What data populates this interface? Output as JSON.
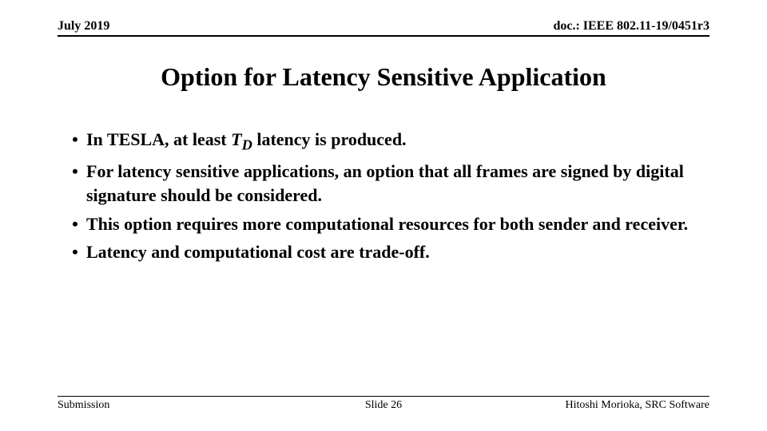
{
  "header": {
    "left": "July 2019",
    "right": "doc.: IEEE 802.11-19/0451r3"
  },
  "title": "Option for Latency Sensitive Application",
  "bullets": [
    {
      "pre": "In TESLA, at least ",
      "italic": "T",
      "sub": "D",
      "post": " latency is produced."
    },
    {
      "text": "For latency sensitive applications, an option that all frames are signed by digital signature should be considered."
    },
    {
      "text": "This option requires more computational resources for both sender and receiver."
    },
    {
      "text": "Latency and computational cost are trade-off."
    }
  ],
  "footer": {
    "left": "Submission",
    "center": "Slide 26",
    "right": "Hitoshi Morioka, SRC Software"
  },
  "style": {
    "background": "#ffffff",
    "text_color": "#000000",
    "title_fontsize": 32,
    "body_fontsize": 22,
    "header_fontsize": 16,
    "footer_fontsize": 14
  }
}
